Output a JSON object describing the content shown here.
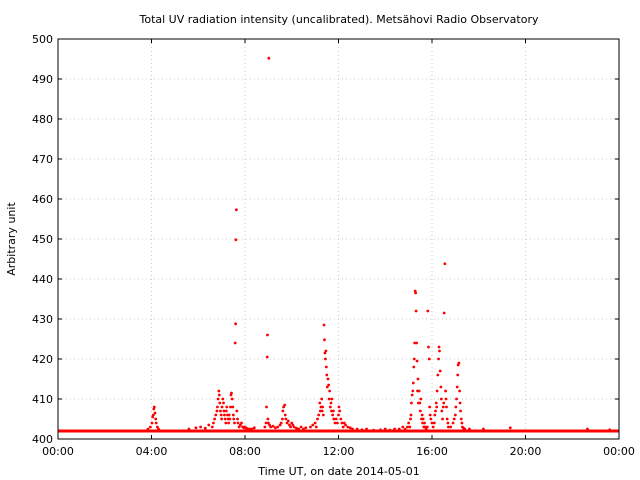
{
  "chart_data": {
    "type": "scatter",
    "title": "Total UV radiation intensity (uncalibrated). Metsähovi Radio Observatory",
    "xlabel": "Time UT, on date 2014-05-01",
    "ylabel": "Arbitrary unit",
    "xlim": [
      0,
      24
    ],
    "ylim": [
      400,
      500
    ],
    "x_ticks": [
      {
        "value": 0,
        "label": "00:00"
      },
      {
        "value": 4,
        "label": "04:00"
      },
      {
        "value": 8,
        "label": "08:00"
      },
      {
        "value": 12,
        "label": "12:00"
      },
      {
        "value": 16,
        "label": "16:00"
      },
      {
        "value": 20,
        "label": "20:00"
      },
      {
        "value": 24,
        "label": "00:00"
      }
    ],
    "y_ticks": [
      {
        "value": 400,
        "label": "400"
      },
      {
        "value": 410,
        "label": "410"
      },
      {
        "value": 420,
        "label": "420"
      },
      {
        "value": 430,
        "label": "430"
      },
      {
        "value": 440,
        "label": "440"
      },
      {
        "value": 450,
        "label": "450"
      },
      {
        "value": 460,
        "label": "460"
      },
      {
        "value": 470,
        "label": "470"
      },
      {
        "value": 480,
        "label": "480"
      },
      {
        "value": 490,
        "label": "490"
      },
      {
        "value": 500,
        "label": "500"
      }
    ],
    "grid": true,
    "marker_color": "#ff0000",
    "baseline_value": 402,
    "series": [
      {
        "points": [
          [
            3.85,
            402.5
          ],
          [
            3.95,
            403
          ],
          [
            4.02,
            404
          ],
          [
            4.05,
            405.5
          ],
          [
            4.08,
            406
          ],
          [
            4.1,
            407.5
          ],
          [
            4.12,
            408
          ],
          [
            4.15,
            406.5
          ],
          [
            4.18,
            405
          ],
          [
            4.2,
            404
          ],
          [
            4.25,
            403
          ],
          [
            4.3,
            402.5
          ],
          [
            5.6,
            402.5
          ],
          [
            5.9,
            402.8
          ],
          [
            6.1,
            403
          ],
          [
            6.3,
            402.7
          ],
          [
            6.45,
            403.5
          ],
          [
            6.6,
            403
          ],
          [
            6.65,
            404
          ],
          [
            6.7,
            405
          ],
          [
            6.75,
            406
          ],
          [
            6.8,
            407
          ],
          [
            6.82,
            408
          ],
          [
            6.85,
            410
          ],
          [
            6.88,
            412
          ],
          [
            6.9,
            411
          ],
          [
            6.92,
            409
          ],
          [
            6.95,
            407
          ],
          [
            6.98,
            406
          ],
          [
            7.0,
            405
          ],
          [
            7.02,
            408
          ],
          [
            7.05,
            410
          ],
          [
            7.08,
            409
          ],
          [
            7.1,
            407
          ],
          [
            7.12,
            406
          ],
          [
            7.15,
            405
          ],
          [
            7.18,
            404
          ],
          [
            7.2,
            407
          ],
          [
            7.22,
            408
          ],
          [
            7.25,
            406
          ],
          [
            7.28,
            405
          ],
          [
            7.3,
            404
          ],
          [
            7.32,
            406
          ],
          [
            7.35,
            405
          ],
          [
            7.38,
            408
          ],
          [
            7.4,
            411
          ],
          [
            7.42,
            411.5
          ],
          [
            7.45,
            410
          ],
          [
            7.48,
            408
          ],
          [
            7.5,
            406
          ],
          [
            7.52,
            405
          ],
          [
            7.55,
            404
          ],
          [
            7.58,
            424
          ],
          [
            7.6,
            428.8
          ],
          [
            7.61,
            449.8
          ],
          [
            7.63,
            457.3
          ],
          [
            7.65,
            407
          ],
          [
            7.68,
            405
          ],
          [
            7.7,
            404
          ],
          [
            7.75,
            403
          ],
          [
            7.8,
            403.5
          ],
          [
            7.85,
            404
          ],
          [
            7.9,
            403
          ],
          [
            7.95,
            402.8
          ],
          [
            8.0,
            403
          ],
          [
            8.05,
            402.7
          ],
          [
            8.1,
            402.6
          ],
          [
            8.2,
            402.5
          ],
          [
            8.3,
            402.5
          ],
          [
            8.4,
            402.8
          ],
          [
            8.85,
            403
          ],
          [
            8.9,
            404
          ],
          [
            8.92,
            408
          ],
          [
            8.95,
            420.5
          ],
          [
            8.96,
            426
          ],
          [
            8.98,
            405
          ],
          [
            9.0,
            404
          ],
          [
            9.02,
            495.2
          ],
          [
            9.05,
            403.5
          ],
          [
            9.1,
            403
          ],
          [
            9.2,
            403.2
          ],
          [
            9.3,
            402.8
          ],
          [
            9.4,
            403
          ],
          [
            9.5,
            403.5
          ],
          [
            9.55,
            404
          ],
          [
            9.6,
            405
          ],
          [
            9.62,
            407
          ],
          [
            9.65,
            408
          ],
          [
            9.7,
            408.5
          ],
          [
            9.72,
            406
          ],
          [
            9.75,
            405
          ],
          [
            9.8,
            404
          ],
          [
            9.85,
            404.5
          ],
          [
            9.9,
            403.5
          ],
          [
            9.95,
            403
          ],
          [
            10.0,
            404
          ],
          [
            10.05,
            403.5
          ],
          [
            10.1,
            403
          ],
          [
            10.2,
            402.7
          ],
          [
            10.3,
            402.5
          ],
          [
            10.4,
            403
          ],
          [
            10.5,
            402.5
          ],
          [
            10.6,
            402.8
          ],
          [
            10.8,
            403
          ],
          [
            10.9,
            403.5
          ],
          [
            11.0,
            404
          ],
          [
            11.05,
            403
          ],
          [
            11.1,
            405
          ],
          [
            11.15,
            406
          ],
          [
            11.2,
            409
          ],
          [
            11.22,
            407
          ],
          [
            11.25,
            408
          ],
          [
            11.28,
            410
          ],
          [
            11.3,
            407
          ],
          [
            11.32,
            408
          ],
          [
            11.35,
            406
          ],
          [
            11.38,
            428.5
          ],
          [
            11.4,
            424.8
          ],
          [
            11.42,
            421.5
          ],
          [
            11.44,
            420
          ],
          [
            11.46,
            422
          ],
          [
            11.48,
            418
          ],
          [
            11.5,
            416
          ],
          [
            11.52,
            413
          ],
          [
            11.55,
            415
          ],
          [
            11.58,
            413.5
          ],
          [
            11.6,
            410
          ],
          [
            11.62,
            412
          ],
          [
            11.65,
            408
          ],
          [
            11.68,
            409
          ],
          [
            11.7,
            407
          ],
          [
            11.72,
            410
          ],
          [
            11.75,
            406
          ],
          [
            11.78,
            407
          ],
          [
            11.8,
            405
          ],
          [
            11.85,
            404
          ],
          [
            11.9,
            405
          ],
          [
            11.95,
            404
          ],
          [
            12.0,
            406
          ],
          [
            12.02,
            408
          ],
          [
            12.05,
            407
          ],
          [
            12.1,
            405
          ],
          [
            12.15,
            404
          ],
          [
            12.2,
            403
          ],
          [
            12.25,
            404
          ],
          [
            12.3,
            403.5
          ],
          [
            12.4,
            403
          ],
          [
            12.5,
            402.8
          ],
          [
            12.6,
            402.5
          ],
          [
            12.8,
            402.5
          ],
          [
            13.0,
            402.3
          ],
          [
            13.2,
            402.5
          ],
          [
            13.5,
            402.2
          ],
          [
            13.8,
            402.3
          ],
          [
            14.0,
            402.5
          ],
          [
            14.2,
            402.2
          ],
          [
            14.4,
            402.5
          ],
          [
            14.6,
            402.5
          ],
          [
            14.75,
            403
          ],
          [
            14.85,
            402.5
          ],
          [
            14.95,
            403
          ],
          [
            15.0,
            404
          ],
          [
            15.05,
            403
          ],
          [
            15.08,
            405
          ],
          [
            15.1,
            406
          ],
          [
            15.12,
            409
          ],
          [
            15.15,
            411
          ],
          [
            15.18,
            412
          ],
          [
            15.2,
            414
          ],
          [
            15.22,
            418
          ],
          [
            15.24,
            420
          ],
          [
            15.26,
            424
          ],
          [
            15.28,
            437
          ],
          [
            15.3,
            436.5
          ],
          [
            15.32,
            432
          ],
          [
            15.34,
            424
          ],
          [
            15.36,
            419.5
          ],
          [
            15.38,
            412
          ],
          [
            15.4,
            415
          ],
          [
            15.42,
            409
          ],
          [
            15.45,
            412
          ],
          [
            15.48,
            409
          ],
          [
            15.5,
            407
          ],
          [
            15.52,
            410
          ],
          [
            15.55,
            405
          ],
          [
            15.58,
            406
          ],
          [
            15.6,
            404
          ],
          [
            15.62,
            405
          ],
          [
            15.65,
            403
          ],
          [
            15.68,
            404
          ],
          [
            15.7,
            403
          ],
          [
            15.75,
            402.5
          ],
          [
            15.8,
            403
          ],
          [
            15.82,
            432
          ],
          [
            15.85,
            423
          ],
          [
            15.88,
            420
          ],
          [
            15.9,
            408
          ],
          [
            15.92,
            406
          ],
          [
            15.95,
            405
          ],
          [
            16.0,
            404
          ],
          [
            16.05,
            403
          ],
          [
            16.1,
            404
          ],
          [
            16.12,
            406
          ],
          [
            16.15,
            407
          ],
          [
            16.18,
            409
          ],
          [
            16.2,
            408
          ],
          [
            16.22,
            412
          ],
          [
            16.25,
            416
          ],
          [
            16.28,
            420
          ],
          [
            16.3,
            423
          ],
          [
            16.32,
            422
          ],
          [
            16.35,
            417
          ],
          [
            16.38,
            413
          ],
          [
            16.4,
            410
          ],
          [
            16.42,
            407
          ],
          [
            16.45,
            405
          ],
          [
            16.48,
            408
          ],
          [
            16.5,
            409
          ],
          [
            16.52,
            431.5
          ],
          [
            16.55,
            443.8
          ],
          [
            16.58,
            412
          ],
          [
            16.6,
            410
          ],
          [
            16.62,
            408
          ],
          [
            16.65,
            405
          ],
          [
            16.68,
            404
          ],
          [
            16.7,
            403
          ],
          [
            16.8,
            403
          ],
          [
            16.9,
            404
          ],
          [
            16.95,
            405
          ],
          [
            17.0,
            406
          ],
          [
            17.02,
            408
          ],
          [
            17.05,
            410
          ],
          [
            17.08,
            413
          ],
          [
            17.1,
            416
          ],
          [
            17.12,
            418.5
          ],
          [
            17.15,
            419
          ],
          [
            17.18,
            412
          ],
          [
            17.2,
            409
          ],
          [
            17.22,
            407
          ],
          [
            17.25,
            405
          ],
          [
            17.28,
            404
          ],
          [
            17.3,
            403
          ],
          [
            17.35,
            402.7
          ],
          [
            17.4,
            402.5
          ],
          [
            17.6,
            402.5
          ],
          [
            18.2,
            402.5
          ],
          [
            19.35,
            402.8
          ],
          [
            22.65,
            402.5
          ],
          [
            23.6,
            402.3
          ]
        ]
      }
    ]
  }
}
